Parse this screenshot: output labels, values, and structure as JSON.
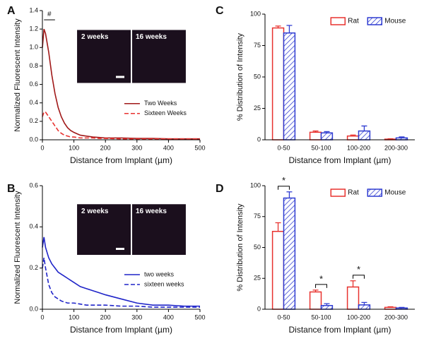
{
  "chart_data": [
    {
      "type": "line",
      "panel": "A",
      "xlabel": "Distance from Implant (µm)",
      "ylabel": "Normalized Fluorescent Intensity",
      "xlim": [
        0,
        500
      ],
      "xticks": [
        0,
        100,
        200,
        300,
        400,
        500
      ],
      "ylim": [
        0,
        1.4
      ],
      "yticks": [
        {
          "value": 0,
          "label": "0.0"
        },
        0.2,
        0.4,
        0.6,
        0.8,
        {
          "value": 1,
          "label": "1.0"
        },
        1.2,
        1.4
      ],
      "x": [
        0,
        5,
        10,
        20,
        30,
        40,
        50,
        60,
        70,
        80,
        90,
        100,
        120,
        140,
        160,
        180,
        200,
        250,
        300,
        350,
        400,
        450,
        500
      ],
      "series": [
        {
          "name": "Two Weeks",
          "color": "#a01818",
          "line_style": "solid",
          "values": [
            1.0,
            1.2,
            1.15,
            0.95,
            0.7,
            0.5,
            0.35,
            0.25,
            0.18,
            0.13,
            0.1,
            0.08,
            0.05,
            0.04,
            0.03,
            0.025,
            0.02,
            0.02,
            0.015,
            0.015,
            0.01,
            0.01,
            0.01
          ]
        },
        {
          "name": "Sixteen Weeks",
          "color": "#e8322f",
          "line_style": "dashed",
          "values": [
            0.25,
            0.3,
            0.3,
            0.25,
            0.2,
            0.15,
            0.1,
            0.07,
            0.05,
            0.04,
            0.03,
            0.03,
            0.02,
            0.02,
            0.02,
            0.015,
            0.015,
            0.01,
            0.01,
            0.01,
            0.01,
            0.01,
            0.01
          ]
        }
      ],
      "annotations": [
        "#"
      ],
      "insets": [
        "2 weeks",
        "16 weeks"
      ],
      "legend": "center right"
    },
    {
      "type": "line",
      "panel": "B",
      "xlabel": "Distance from Implant (µm)",
      "ylabel": "Normalized Fluorescent Intensity",
      "xlim": [
        0,
        500
      ],
      "xticks": [
        0,
        100,
        200,
        300,
        400,
        500
      ],
      "ylim": [
        0,
        0.6
      ],
      "yticks": [
        {
          "value": 0,
          "label": "0.0"
        },
        0.2,
        0.4,
        0.6
      ],
      "x": [
        0,
        5,
        10,
        20,
        30,
        40,
        50,
        60,
        70,
        80,
        90,
        100,
        120,
        140,
        160,
        180,
        200,
        250,
        300,
        350,
        400,
        450,
        500
      ],
      "series": [
        {
          "name": "two weeks",
          "color": "#1f24c8",
          "line_style": "solid",
          "values": [
            0.3,
            0.35,
            0.3,
            0.25,
            0.22,
            0.2,
            0.18,
            0.17,
            0.16,
            0.15,
            0.14,
            0.13,
            0.11,
            0.1,
            0.09,
            0.08,
            0.07,
            0.05,
            0.03,
            0.02,
            0.02,
            0.015,
            0.015
          ]
        },
        {
          "name": "sixteen weeks",
          "color": "#1f24c8",
          "line_style": "dashed",
          "values": [
            0.2,
            0.25,
            0.2,
            0.12,
            0.08,
            0.06,
            0.05,
            0.04,
            0.035,
            0.03,
            0.03,
            0.03,
            0.025,
            0.02,
            0.02,
            0.02,
            0.02,
            0.015,
            0.015,
            0.01,
            0.01,
            0.01,
            0.01
          ]
        }
      ],
      "annotations": [],
      "insets": [
        "2 weeks",
        "16 weeks"
      ],
      "legend": "center right"
    },
    {
      "type": "bar",
      "panel": "C",
      "xlabel": "Distance from Implant (µm)",
      "ylabel": "% Distribution of Intensity",
      "ylim": [
        0,
        100
      ],
      "yticks": [
        0,
        25,
        50,
        75,
        100
      ],
      "categories": [
        "0-50",
        "50-100",
        "100-200",
        "200-300"
      ],
      "series": [
        {
          "name": "Rat",
          "color": "#e8322f",
          "hatch": false,
          "values": [
            89,
            6,
            3,
            0.5
          ],
          "errors": [
            1.5,
            1,
            0.8,
            0.3
          ]
        },
        {
          "name": "Mouse",
          "color": "#2e3bd1",
          "hatch": true,
          "values": [
            85,
            5.5,
            7,
            1.5
          ],
          "errors": [
            6,
            1,
            4,
            0.8
          ]
        }
      ],
      "annotations": [],
      "legend": "upper right"
    },
    {
      "type": "bar",
      "panel": "D",
      "xlabel": "Distance from Implant (µm)",
      "ylabel": "% Distribution of Intensity",
      "ylim": [
        0,
        100
      ],
      "yticks": [
        0,
        25,
        50,
        75,
        100
      ],
      "categories": [
        "0-50",
        "50-100",
        "100-200",
        "200-300"
      ],
      "series": [
        {
          "name": "Rat",
          "color": "#e8322f",
          "hatch": false,
          "values": [
            63,
            14,
            18,
            1.5
          ],
          "errors": [
            7,
            1.5,
            5,
            0.5
          ]
        },
        {
          "name": "Mouse",
          "color": "#2e3bd1",
          "hatch": true,
          "values": [
            90,
            3,
            3.5,
            1
          ],
          "errors": [
            5,
            1.5,
            2,
            0.5
          ]
        }
      ],
      "annotations": [
        "*",
        "*",
        "*"
      ],
      "legend": "upper right"
    }
  ]
}
